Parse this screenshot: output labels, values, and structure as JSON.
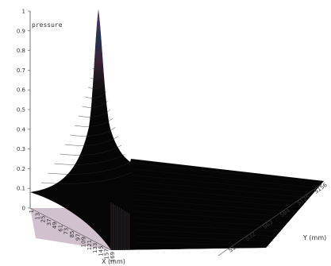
{
  "chart_data": {
    "type": "surface",
    "title": "",
    "zlabel": "pressure",
    "xlabel": "X (mm)",
    "ylabel": "Y (mm)",
    "zlim": [
      0,
      1
    ],
    "z_ticks": [
      "0",
      "0.1",
      "0.2",
      "0.3",
      "0.4",
      "0.5",
      "0.6",
      "0.7",
      "0.8",
      "0.9",
      "1"
    ],
    "x_ticks": [
      "1",
      "13",
      "25",
      "37",
      "49",
      "61",
      "73",
      "85",
      "97",
      "109",
      "121",
      "133",
      "145",
      "157",
      "169"
    ],
    "y_ticks": [
      "S1",
      "S32",
      "S63",
      "S94",
      "S125",
      "S156"
    ],
    "peak": {
      "x": 61,
      "y": "S156",
      "z": 1.0
    },
    "colors": {
      "surface": "#050505",
      "mesh": "#2a2a2a",
      "floor": "#c9b6c6",
      "peak_tint": "#d070c0",
      "mid_tint": "#4a6ab0"
    }
  }
}
